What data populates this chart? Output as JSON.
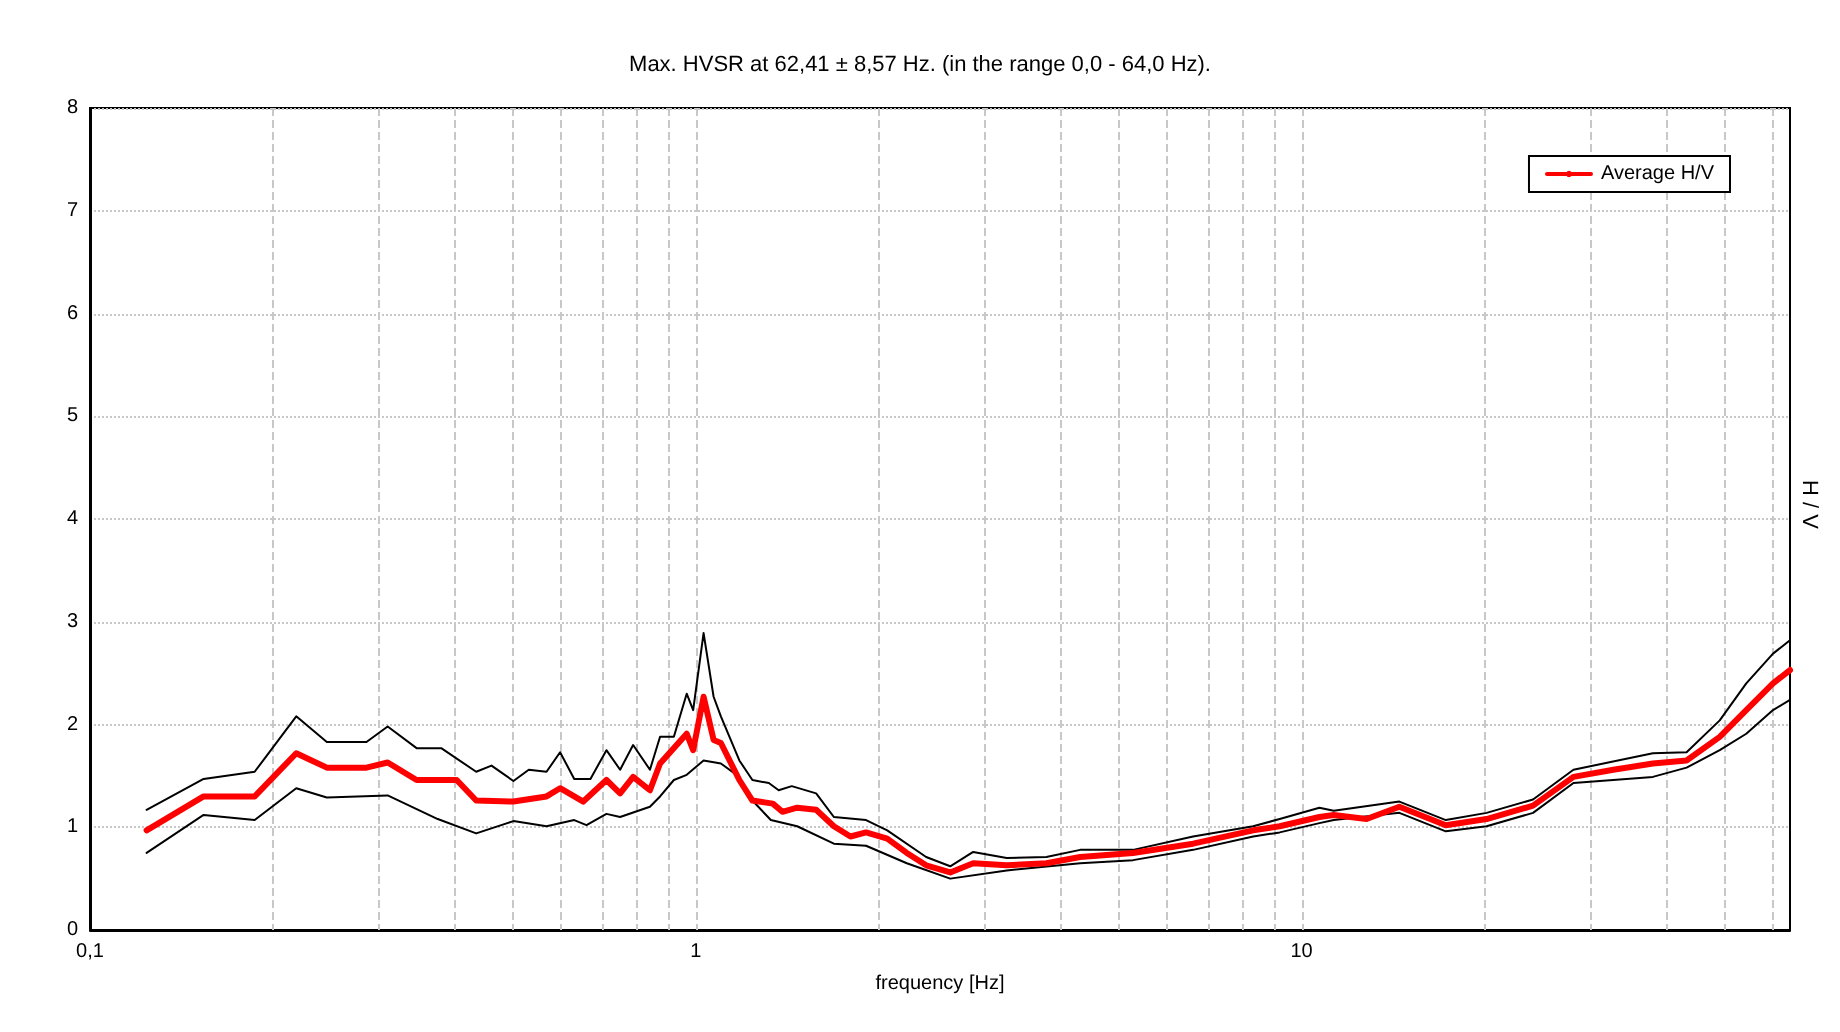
{
  "chart_data": {
    "type": "line",
    "title": "Max. HVSR at 62,41 ± 8,57 Hz. (in the range 0,0 - 64,0 Hz).",
    "xlabel": "frequency [Hz]",
    "ylabel": "H / V",
    "log": "x",
    "xlim": [
      0.1,
      64
    ],
    "xticks": [
      {
        "value": 0.1,
        "label": "0,1"
      },
      1,
      10
    ],
    "ylim": [
      0,
      8
    ],
    "yticks": [
      0,
      1,
      2,
      3,
      4,
      5,
      6,
      7,
      8
    ],
    "grid": true,
    "legend": "top right",
    "marker": "none",
    "line_style": "solid",
    "series": [
      {
        "color": "#000000",
        "x": [
          0.124,
          0.154,
          0.187,
          0.219,
          0.246,
          0.286,
          0.31,
          0.346,
          0.38,
          0.434,
          0.46,
          0.5,
          0.53,
          0.567,
          0.597,
          0.63,
          0.67,
          0.712,
          0.75,
          0.788,
          0.84,
          0.873,
          0.92,
          0.966,
          0.99,
          1.03,
          1.07,
          1.1,
          1.18,
          1.24,
          1.32,
          1.37,
          1.44,
          1.58,
          1.69,
          1.91,
          2.07,
          2.4,
          2.63,
          2.87,
          3.26,
          3.79,
          4.31,
          5.27,
          6.62,
          8.32,
          9.2,
          10.7,
          11.3,
          14.5,
          17.3,
          20.2,
          24.1,
          28.1,
          38.0,
          43.2,
          49,
          54.2,
          60,
          64
        ],
        "values": [
          1.17,
          1.47,
          1.54,
          2.08,
          1.83,
          1.83,
          1.98,
          1.77,
          1.77,
          1.54,
          1.6,
          1.45,
          1.56,
          1.54,
          1.73,
          1.47,
          1.47,
          1.75,
          1.56,
          1.8,
          1.56,
          1.88,
          1.88,
          2.3,
          2.14,
          2.89,
          2.27,
          2.08,
          1.65,
          1.46,
          1.43,
          1.36,
          1.4,
          1.33,
          1.1,
          1.07,
          0.97,
          0.71,
          0.62,
          0.76,
          0.7,
          0.71,
          0.78,
          0.78,
          0.91,
          1.01,
          1.08,
          1.19,
          1.16,
          1.25,
          1.07,
          1.14,
          1.27,
          1.56,
          1.72,
          1.73,
          2.04,
          2.4,
          2.69,
          2.82
        ]
      },
      {
        "color": "#000000",
        "x": [
          0.124,
          0.154,
          0.187,
          0.219,
          0.246,
          0.31,
          0.375,
          0.434,
          0.5,
          0.567,
          0.63,
          0.66,
          0.712,
          0.75,
          0.84,
          0.873,
          0.92,
          0.966,
          1.03,
          1.1,
          1.18,
          1.24,
          1.33,
          1.47,
          1.69,
          1.91,
          2.23,
          2.63,
          3.26,
          4.31,
          5.27,
          6.62,
          8.32,
          9.2,
          10.7,
          11.3,
          14.5,
          17.3,
          20.2,
          24.1,
          28.1,
          38.0,
          43.2,
          49,
          54.2,
          60,
          64
        ],
        "values": [
          0.75,
          1.12,
          1.07,
          1.38,
          1.29,
          1.31,
          1.08,
          0.94,
          1.06,
          1.01,
          1.07,
          1.02,
          1.13,
          1.1,
          1.2,
          1.3,
          1.46,
          1.51,
          1.65,
          1.62,
          1.49,
          1.26,
          1.07,
          1.01,
          0.84,
          0.82,
          0.65,
          0.5,
          0.58,
          0.65,
          0.68,
          0.78,
          0.91,
          0.95,
          1.04,
          1.07,
          1.14,
          0.96,
          1.01,
          1.14,
          1.43,
          1.49,
          1.58,
          1.75,
          1.91,
          2.14,
          2.24
        ]
      },
      {
        "name": "Average H/V",
        "color": "#ff0000",
        "x": [
          0.124,
          0.154,
          0.187,
          0.219,
          0.246,
          0.286,
          0.31,
          0.346,
          0.403,
          0.434,
          0.5,
          0.567,
          0.597,
          0.652,
          0.712,
          0.75,
          0.788,
          0.84,
          0.873,
          0.966,
          0.99,
          1.03,
          1.07,
          1.1,
          1.18,
          1.24,
          1.34,
          1.39,
          1.47,
          1.58,
          1.69,
          1.8,
          1.91,
          2.07,
          2.23,
          2.4,
          2.63,
          2.87,
          3.26,
          3.79,
          4.31,
          5.27,
          6.62,
          8.32,
          9.2,
          10.7,
          11.3,
          12.8,
          14.5,
          17.3,
          20.2,
          24.1,
          28.1,
          32.7,
          38.0,
          43.2,
          49,
          54.2,
          60,
          64
        ],
        "values": [
          0.97,
          1.3,
          1.3,
          1.72,
          1.58,
          1.58,
          1.63,
          1.46,
          1.46,
          1.26,
          1.25,
          1.3,
          1.38,
          1.25,
          1.46,
          1.33,
          1.49,
          1.36,
          1.62,
          1.91,
          1.75,
          2.27,
          1.85,
          1.82,
          1.46,
          1.26,
          1.23,
          1.15,
          1.19,
          1.17,
          1.01,
          0.91,
          0.95,
          0.89,
          0.75,
          0.63,
          0.56,
          0.65,
          0.63,
          0.65,
          0.71,
          0.75,
          0.84,
          0.97,
          1.01,
          1.1,
          1.12,
          1.08,
          1.2,
          1.02,
          1.08,
          1.21,
          1.49,
          1.56,
          1.62,
          1.65,
          1.88,
          2.14,
          2.4,
          2.53
        ]
      }
    ]
  }
}
